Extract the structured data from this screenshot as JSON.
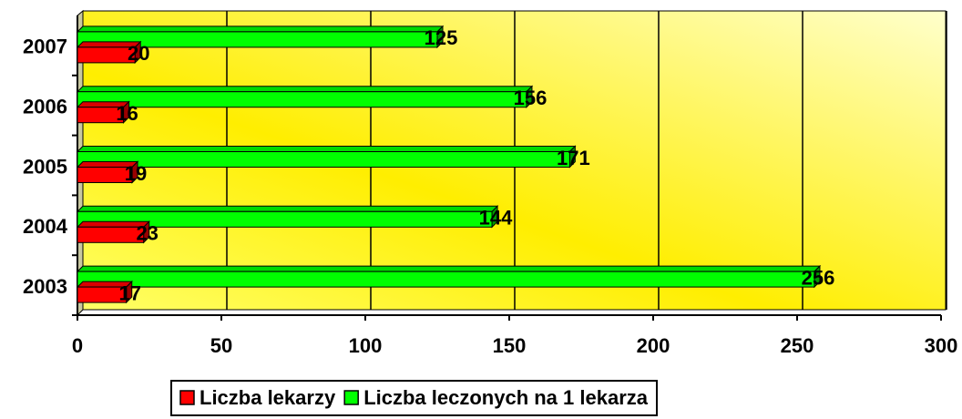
{
  "chart_data": {
    "type": "bar",
    "orientation": "horizontal",
    "categories": [
      "2003",
      "2004",
      "2005",
      "2006",
      "2007"
    ],
    "series": [
      {
        "name": "Liczba lekarzy",
        "color": "#ff0000",
        "values": [
          17,
          23,
          19,
          16,
          20
        ]
      },
      {
        "name": "Liczba leczonych na 1 lekarza",
        "color": "#00ff00",
        "values": [
          256,
          144,
          171,
          156,
          125
        ]
      }
    ],
    "xlim": [
      0,
      300
    ],
    "xticks": [
      0,
      50,
      100,
      150,
      200,
      250,
      300
    ],
    "grid": true,
    "legend": "bottom"
  }
}
